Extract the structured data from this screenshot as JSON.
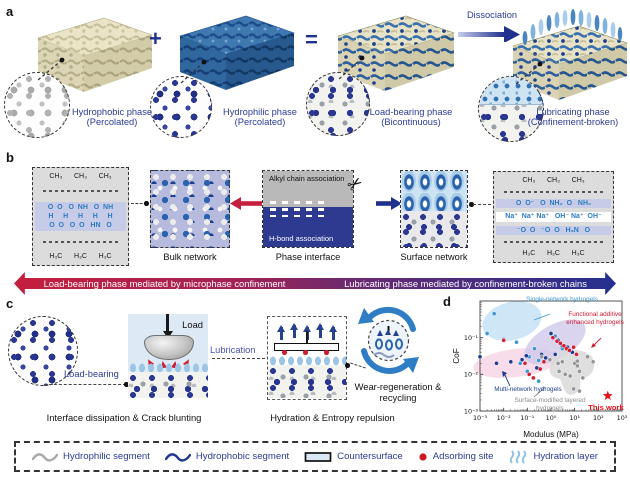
{
  "colors": {
    "navy": "#20308d",
    "caption_blue": "#2b3a94",
    "red": "#c41f3e",
    "lubrication_purple": "#4a50b5",
    "chem_blue": "#2f7bbf"
  },
  "panel_a": {
    "label": "a",
    "plus": "+",
    "equals": "=",
    "dissociation_label": "Dissociation",
    "phases": [
      {
        "name": "Hydrophobic phase",
        "qualifier": "(Percolated)"
      },
      {
        "name": "Hydrophilic phase",
        "qualifier": "(Percolated)"
      },
      {
        "name": "Load-bearing phase",
        "qualifier": "(Bicontinuous)"
      },
      {
        "name": "Lubricating phase",
        "qualifier": "(Confinement-broken)"
      }
    ]
  },
  "panel_b": {
    "label": "b",
    "left_structure": {
      "top": "CH₃      CH₃      CH₃",
      "row1": "O  O   O  NH   O  NH",
      "row2": "H     H     H     H     H",
      "row3": "O  O   O  O   HN   O",
      "bottom": "H₃C      H₃C      H₃C"
    },
    "bulk_network_label": "Bulk network",
    "interface": {
      "top_label": "Alkyl chain association",
      "bottom_label": "H-bond association",
      "caption": "Phase interface"
    },
    "surface_network_label": "Surface network",
    "right_structure": {
      "top": "CH₃      CH₃      CH₃",
      "row1": "O  O⁻   O  NH₂  O   NH₂",
      "row2": "Na⁺  Na⁺ Na⁺   OH⁻ Na⁺  OH⁻",
      "row3": "⁻O  O   ⁻O  O   H₃N   O",
      "bottom": "H₃C      H₃C      H₃C"
    },
    "banner_left": "Load-bearing phase mediated by microphase confinement",
    "banner_right": "Lubricating phase mediated by confinement-broken chains"
  },
  "panel_c": {
    "label": "c",
    "load_bearing_label": "Load-bearing",
    "load_label": "Load",
    "lubrication_label": "Lubrication",
    "wear_label": "Wear-regeneration & recycling",
    "caption_left": "Interface dissipation & Crack blunting",
    "caption_right": "Hydration & Entropy repulsion"
  },
  "panel_d": {
    "label": "d"
  },
  "chart_data": {
    "type": "scatter",
    "title": "",
    "xlabel": "Modulus (MPa)",
    "ylabel": "CoF",
    "x_scale": "log",
    "y_scale": "log",
    "xlim": [
      0.001,
      1000
    ],
    "ylim": [
      0.001,
      1
    ],
    "x_ticks": [
      "10⁻³",
      "10⁻²",
      "10⁻¹",
      "10⁰",
      "10¹",
      "10²",
      "10³"
    ],
    "y_ticks": [
      "10⁻³",
      "10⁻²",
      "10⁻¹"
    ],
    "series": [
      {
        "name": "Single-network hydrogels",
        "color": "#3f97cf",
        "points": [
          [
            0.004,
            0.45
          ],
          [
            0.002,
            0.13
          ],
          [
            0.01,
            0.09
          ],
          [
            0.035,
            0.075
          ],
          [
            0.2,
            0.05
          ],
          [
            0.12,
            0.03
          ],
          [
            0.3,
            0.024
          ],
          [
            0.1,
            0.012
          ],
          [
            0.3,
            0.0065
          ],
          [
            1.5,
            0.11
          ],
          [
            3,
            0.05
          ],
          [
            0.05,
            0.02
          ]
        ]
      },
      {
        "name": "Multi-network hydrogels",
        "color": "#1d3d8f",
        "points": [
          [
            0.001,
            0.03
          ],
          [
            0.005,
            0.02
          ],
          [
            0.02,
            0.022
          ],
          [
            0.06,
            0.025
          ],
          [
            0.09,
            0.032
          ],
          [
            0.4,
            0.035
          ],
          [
            0.6,
            0.028
          ],
          [
            1,
            0.13
          ],
          [
            2,
            0.085
          ],
          [
            3,
            0.06
          ],
          [
            5,
            0.055
          ],
          [
            8,
            0.04
          ],
          [
            1.5,
            0.035
          ],
          [
            0.25,
            0.015
          ]
        ]
      },
      {
        "name": "Functional additive enhanced hydrogels",
        "color": "#cf2038",
        "points": [
          [
            0.01,
            0.085
          ],
          [
            0.08,
            0.02
          ],
          [
            0.12,
            0.01
          ],
          [
            0.18,
            0.008
          ],
          [
            0.35,
            0.014
          ],
          [
            1.2,
            0.1
          ],
          [
            1.8,
            0.08
          ],
          [
            2.5,
            0.07
          ],
          [
            3.5,
            0.06
          ],
          [
            4.5,
            0.05
          ],
          [
            6,
            0.045
          ],
          [
            9,
            0.055
          ],
          [
            12,
            0.035
          ],
          [
            0.5,
            0.022
          ]
        ]
      },
      {
        "name": "Surface-modified layered hydrogels",
        "color": "#939598",
        "points": [
          [
            0.9,
            0.025
          ],
          [
            2,
            0.02
          ],
          [
            3,
            0.022
          ],
          [
            2.2,
            0.012
          ],
          [
            4,
            0.01
          ],
          [
            6.5,
            0.009
          ],
          [
            10,
            0.02
          ],
          [
            13,
            0.023
          ],
          [
            13,
            0.017
          ],
          [
            16,
            0.012
          ],
          [
            22,
            0.008
          ],
          [
            9,
            0.004
          ],
          [
            16,
            0.0035
          ],
          [
            35,
            0.03
          ],
          [
            60,
            0.022
          ],
          [
            0.4,
            0.03
          ]
        ]
      }
    ],
    "highlight": {
      "name": "This work",
      "color": "#e8121a",
      "marker": "star",
      "point": [
        250,
        0.0026
      ]
    },
    "region_labels": [
      {
        "text": "Single-network hydrogels",
        "color": "#3f97cf"
      },
      {
        "text": "Functional additive enhanced hydrogels",
        "color": "#cf2038"
      },
      {
        "text": "Multi-network hydrogels",
        "color": "#1d3d8f"
      },
      {
        "text": "Surface-modified layered hydrogels",
        "color": "#8a8c8f"
      }
    ],
    "legend_position": "in-plot annotations",
    "grid": false
  },
  "legend": {
    "items": [
      {
        "label": "Hydrophilic segment",
        "icon": "gray-wave"
      },
      {
        "label": "Hydrophobic segment",
        "icon": "navy-wave"
      },
      {
        "label": "Countersurface",
        "icon": "countersurface-rect"
      },
      {
        "label": "Adsorbing site",
        "icon": "red-dot"
      },
      {
        "label": "Hydration layer",
        "icon": "hydration-wave"
      }
    ]
  }
}
